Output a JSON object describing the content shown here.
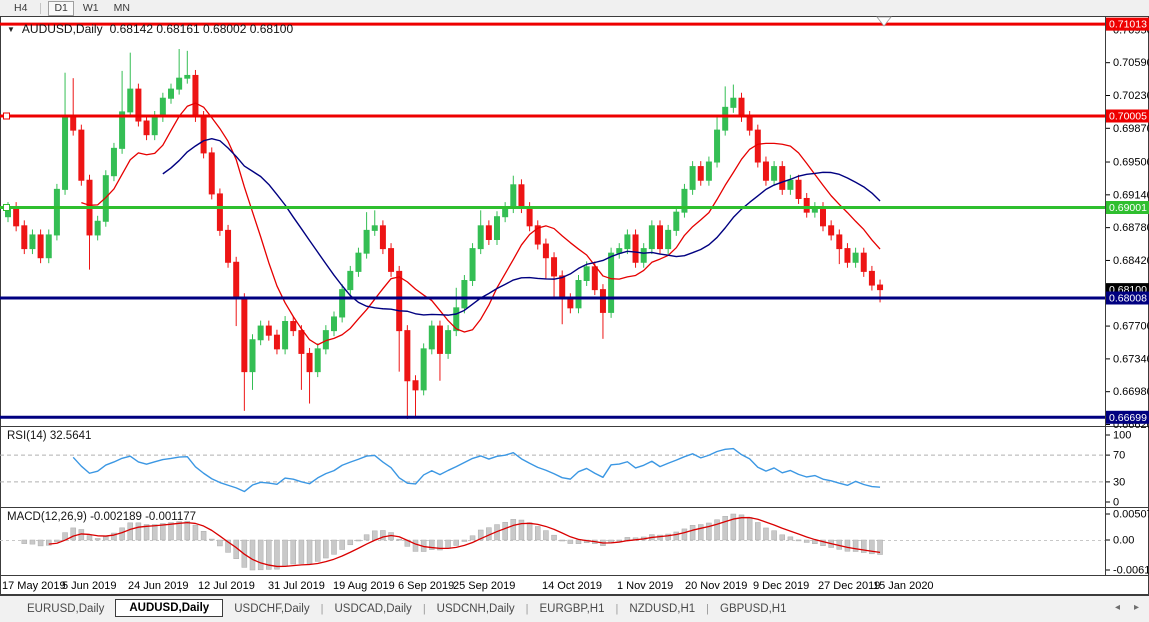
{
  "toolbar": {
    "buttons": [
      {
        "label": "H4",
        "active": false
      },
      {
        "label": "D1",
        "active": true
      },
      {
        "label": "W1",
        "active": false
      },
      {
        "label": "MN",
        "active": false
      }
    ],
    "separator_after_index": 0
  },
  "title": {
    "symbol": "AUDUSD,Daily",
    "ohlc_text": "0.68142 0.68161 0.68002 0.68100"
  },
  "indicators": {
    "rsi": {
      "label": "RSI(14) 32.5641",
      "value": 32.5641,
      "axis_labels": [
        "100",
        "70",
        "30",
        "0"
      ],
      "overbought": 70,
      "oversold": 30
    },
    "macd": {
      "label": "MACD(12,26,9) -0.002189 -0.001177",
      "values": [
        -0.002189,
        -0.001177
      ],
      "axis_labels": [
        "0.005076",
        "0.00",
        "-0.006148"
      ]
    }
  },
  "price_axis": {
    "ticks": [
      0.7095,
      0.7059,
      0.7023,
      0.6987,
      0.695,
      0.6914,
      0.6878,
      0.6842,
      0.677,
      0.6734,
      0.6698,
      0.6662
    ],
    "tags": [
      {
        "text": "0.71013",
        "price": 0.71013,
        "bg": "#ee0000"
      },
      {
        "text": "0.70005",
        "price": 0.70005,
        "bg": "#ee0000"
      },
      {
        "text": "0.69001",
        "price": 0.69001,
        "bg": "#2fbf2f"
      },
      {
        "text": "0.68100",
        "price": 0.681,
        "bg": "#000000"
      },
      {
        "text": "0.68008",
        "price": 0.68008,
        "bg": "#000080"
      },
      {
        "text": "0.66699",
        "price": 0.66699,
        "bg": "#000080"
      }
    ]
  },
  "time_axis": {
    "labels": [
      "17 May 2019",
      "5 Jun 2019",
      "24 Jun 2019",
      "12 Jul 2019",
      "31 Jul 2019",
      "19 Aug 2019",
      "6 Sep 2019",
      "25 Sep 2019",
      "14 Oct 2019",
      "1 Nov 2019",
      "20 Nov 2019",
      "9 Dec 2019",
      "27 Dec 2019",
      "15 Jan 2020"
    ]
  },
  "tabs": {
    "items": [
      "EURUSD,Daily",
      "AUDUSD,Daily",
      "USDCHF,Daily",
      "USDCAD,Daily",
      "USDCNH,Daily",
      "EURGBP,H1",
      "NZDUSD,H1",
      "GBPUSD,H1"
    ],
    "active_index": 1,
    "scroll_left": "◂",
    "scroll_right": "▸"
  },
  "colors": {
    "candle_up": "#34be54",
    "candle_down": "#ed1515",
    "ma_fast": "#e60000",
    "ma_slow": "#000080",
    "rsi_line": "#3b97e3",
    "macd_histogram": "#c9c9c9",
    "macd_signal": "#d90000",
    "level_dash": "#b0b0b0"
  },
  "chart_data": {
    "type": "candlestick",
    "symbol": "AUDUSD",
    "timeframe": "Daily",
    "ohlc_display": {
      "open": 0.68142,
      "high": 0.68161,
      "low": 0.68002,
      "close": 0.681
    },
    "current_price": 0.681,
    "ylim": [
      0.6662,
      0.71013
    ],
    "horizontal_lines": [
      {
        "price": 0.71013,
        "color": "#ee0000",
        "width": 3,
        "anchor": false,
        "marker": "white-triangle"
      },
      {
        "price": 0.70005,
        "color": "#ee0000",
        "width": 3,
        "anchor": true
      },
      {
        "price": 0.69001,
        "color": "#2fbf2f",
        "width": 3,
        "anchor": true
      },
      {
        "price": 0.68008,
        "color": "#000080",
        "width": 3,
        "anchor": false
      },
      {
        "price": 0.66699,
        "color": "#000080",
        "width": 3,
        "anchor": false
      }
    ],
    "overlays": [
      {
        "name": "ma-fast",
        "type": "sma",
        "period": 10,
        "color": "#e60000"
      },
      {
        "name": "ma-slow",
        "type": "sma",
        "period": 20,
        "color": "#000080"
      }
    ],
    "candles": [
      [
        0.689,
        0.6906,
        0.6884,
        0.69
      ],
      [
        0.69,
        0.6906,
        0.6874,
        0.688
      ],
      [
        0.688,
        0.6886,
        0.6849,
        0.6855
      ],
      [
        0.6855,
        0.6876,
        0.6849,
        0.687
      ],
      [
        0.687,
        0.6876,
        0.6839,
        0.6845
      ],
      [
        0.6845,
        0.6876,
        0.6839,
        0.687
      ],
      [
        0.687,
        0.6926,
        0.6864,
        0.692
      ],
      [
        0.692,
        0.7048,
        0.6914,
        0.7
      ],
      [
        0.7,
        0.7042,
        0.6979,
        0.6985
      ],
      [
        0.6985,
        0.6991,
        0.6924,
        0.693
      ],
      [
        0.693,
        0.6936,
        0.6832,
        0.687
      ],
      [
        0.687,
        0.6891,
        0.6864,
        0.6885
      ],
      [
        0.6885,
        0.6941,
        0.6879,
        0.6935
      ],
      [
        0.6935,
        0.6971,
        0.6929,
        0.6965
      ],
      [
        0.6965,
        0.705,
        0.6959,
        0.7005
      ],
      [
        0.7005,
        0.707,
        0.6999,
        0.703
      ],
      [
        0.703,
        0.7036,
        0.6989,
        0.6995
      ],
      [
        0.6995,
        0.7001,
        0.6974,
        0.698
      ],
      [
        0.698,
        0.7006,
        0.6974,
        0.7
      ],
      [
        0.7,
        0.7026,
        0.6994,
        0.702
      ],
      [
        0.702,
        0.7036,
        0.7014,
        0.703
      ],
      [
        0.703,
        0.7074,
        0.7024,
        0.7042
      ],
      [
        0.7042,
        0.7072,
        0.7036,
        0.7045
      ],
      [
        0.7045,
        0.7051,
        0.6994,
        0.7
      ],
      [
        0.7,
        0.7006,
        0.6954,
        0.696
      ],
      [
        0.696,
        0.6966,
        0.6909,
        0.6915
      ],
      [
        0.6915,
        0.6921,
        0.6869,
        0.6875
      ],
      [
        0.6875,
        0.6881,
        0.6834,
        0.684
      ],
      [
        0.684,
        0.6846,
        0.677,
        0.68
      ],
      [
        0.68,
        0.6806,
        0.6677,
        0.672
      ],
      [
        0.672,
        0.6761,
        0.67,
        0.6755
      ],
      [
        0.6755,
        0.6776,
        0.6749,
        0.677
      ],
      [
        0.677,
        0.6776,
        0.6754,
        0.676
      ],
      [
        0.676,
        0.6766,
        0.6739,
        0.6745
      ],
      [
        0.6745,
        0.6781,
        0.6739,
        0.6775
      ],
      [
        0.6775,
        0.6781,
        0.6759,
        0.6765
      ],
      [
        0.6765,
        0.6771,
        0.67,
        0.674
      ],
      [
        0.674,
        0.6746,
        0.6685,
        0.672
      ],
      [
        0.672,
        0.6751,
        0.6714,
        0.6745
      ],
      [
        0.6745,
        0.6771,
        0.6739,
        0.6765
      ],
      [
        0.6765,
        0.6786,
        0.6759,
        0.678
      ],
      [
        0.678,
        0.6816,
        0.6774,
        0.681
      ],
      [
        0.681,
        0.6836,
        0.6804,
        0.683
      ],
      [
        0.683,
        0.6856,
        0.6824,
        0.685
      ],
      [
        0.685,
        0.6895,
        0.6844,
        0.6875
      ],
      [
        0.6875,
        0.6897,
        0.6869,
        0.688
      ],
      [
        0.688,
        0.6886,
        0.6849,
        0.6855
      ],
      [
        0.6855,
        0.6861,
        0.6824,
        0.683
      ],
      [
        0.683,
        0.6836,
        0.672,
        0.6765
      ],
      [
        0.6765,
        0.6771,
        0.6668,
        0.671
      ],
      [
        0.671,
        0.6716,
        0.6671,
        0.67
      ],
      [
        0.67,
        0.6751,
        0.6694,
        0.6745
      ],
      [
        0.6745,
        0.6776,
        0.6739,
        0.677
      ],
      [
        0.677,
        0.6776,
        0.671,
        0.674
      ],
      [
        0.674,
        0.6771,
        0.6734,
        0.6765
      ],
      [
        0.6765,
        0.6812,
        0.6759,
        0.679
      ],
      [
        0.679,
        0.6826,
        0.6784,
        0.682
      ],
      [
        0.682,
        0.6861,
        0.6814,
        0.6855
      ],
      [
        0.6855,
        0.6897,
        0.6849,
        0.688
      ],
      [
        0.688,
        0.6886,
        0.6859,
        0.6865
      ],
      [
        0.6865,
        0.6896,
        0.6859,
        0.689
      ],
      [
        0.689,
        0.6906,
        0.6884,
        0.69
      ],
      [
        0.69,
        0.6935,
        0.6894,
        0.6925
      ],
      [
        0.6925,
        0.6931,
        0.6894,
        0.69
      ],
      [
        0.69,
        0.6906,
        0.6874,
        0.688
      ],
      [
        0.688,
        0.6886,
        0.6854,
        0.686
      ],
      [
        0.686,
        0.6866,
        0.6822,
        0.6845
      ],
      [
        0.6845,
        0.6851,
        0.6802,
        0.6825
      ],
      [
        0.6825,
        0.6831,
        0.6772,
        0.68
      ],
      [
        0.68,
        0.6806,
        0.6784,
        0.679
      ],
      [
        0.679,
        0.6826,
        0.6784,
        0.682
      ],
      [
        0.682,
        0.6841,
        0.6814,
        0.6835
      ],
      [
        0.6835,
        0.6841,
        0.6804,
        0.681
      ],
      [
        0.681,
        0.6816,
        0.6756,
        0.6785
      ],
      [
        0.6785,
        0.6856,
        0.6779,
        0.685
      ],
      [
        0.685,
        0.6861,
        0.6844,
        0.6855
      ],
      [
        0.6855,
        0.6876,
        0.6849,
        0.687
      ],
      [
        0.687,
        0.6876,
        0.6834,
        0.684
      ],
      [
        0.684,
        0.6861,
        0.6834,
        0.6855
      ],
      [
        0.6855,
        0.6886,
        0.6849,
        0.688
      ],
      [
        0.688,
        0.6886,
        0.6849,
        0.6855
      ],
      [
        0.6855,
        0.6881,
        0.6849,
        0.6875
      ],
      [
        0.6875,
        0.6901,
        0.6869,
        0.6895
      ],
      [
        0.6895,
        0.6926,
        0.6889,
        0.692
      ],
      [
        0.692,
        0.6951,
        0.6914,
        0.6945
      ],
      [
        0.6945,
        0.6951,
        0.6924,
        0.693
      ],
      [
        0.693,
        0.6956,
        0.6924,
        0.695
      ],
      [
        0.695,
        0.7002,
        0.6944,
        0.6985
      ],
      [
        0.6985,
        0.7033,
        0.6979,
        0.701
      ],
      [
        0.701,
        0.7035,
        0.7004,
        0.702
      ],
      [
        0.702,
        0.7026,
        0.6994,
        0.7
      ],
      [
        0.7,
        0.7006,
        0.6979,
        0.6985
      ],
      [
        0.6985,
        0.6991,
        0.6944,
        0.695
      ],
      [
        0.695,
        0.6956,
        0.6924,
        0.693
      ],
      [
        0.693,
        0.6951,
        0.6924,
        0.6945
      ],
      [
        0.6945,
        0.6951,
        0.6914,
        0.692
      ],
      [
        0.692,
        0.6936,
        0.6914,
        0.693
      ],
      [
        0.693,
        0.6936,
        0.6904,
        0.691
      ],
      [
        0.691,
        0.6916,
        0.6889,
        0.6895
      ],
      [
        0.6895,
        0.6906,
        0.6889,
        0.69
      ],
      [
        0.69,
        0.6906,
        0.6874,
        0.688
      ],
      [
        0.688,
        0.6886,
        0.6864,
        0.687
      ],
      [
        0.687,
        0.6876,
        0.6838,
        0.6855
      ],
      [
        0.6855,
        0.6861,
        0.6834,
        0.684
      ],
      [
        0.684,
        0.6856,
        0.6834,
        0.685
      ],
      [
        0.685,
        0.6856,
        0.6824,
        0.683
      ],
      [
        0.683,
        0.6836,
        0.6809,
        0.6815
      ],
      [
        0.6815,
        0.6821,
        0.6796,
        0.681
      ]
    ]
  }
}
